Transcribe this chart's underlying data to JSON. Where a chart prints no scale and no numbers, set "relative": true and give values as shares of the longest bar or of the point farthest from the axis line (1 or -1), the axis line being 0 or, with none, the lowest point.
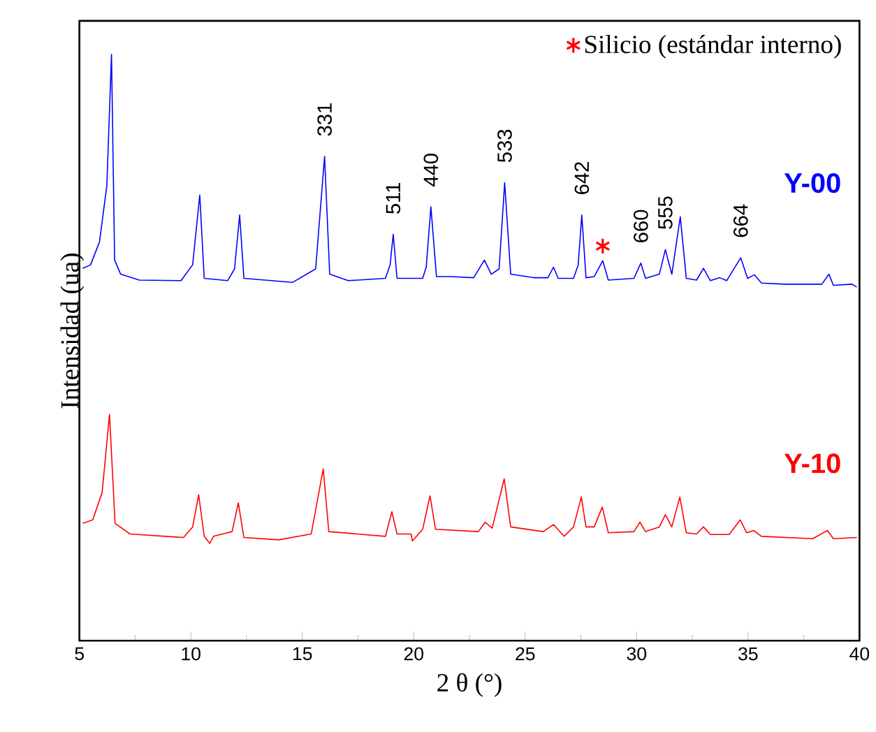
{
  "chart_data": {
    "type": "line",
    "relative": true,
    "xlabel": "2 θ (°)",
    "ylabel": "Intensidad (ua)",
    "xlim": [
      5,
      40
    ],
    "xticks": [
      5,
      10,
      15,
      20,
      25,
      30,
      35,
      40
    ],
    "legend": "top right",
    "series": [
      {
        "name": "Y-00",
        "color": "#0000ff",
        "x": [
          5.15,
          5.5,
          5.9,
          6.23,
          6.44,
          6.58,
          6.85,
          7.69,
          9.56,
          10.08,
          10.4,
          10.6,
          11.65,
          11.96,
          12.19,
          12.38,
          14.56,
          15.6,
          16.0,
          16.23,
          17.06,
          18.73,
          18.94,
          19.08,
          19.25,
          20.4,
          20.56,
          20.77,
          21.02,
          21.65,
          22.69,
          23.17,
          23.48,
          23.83,
          24.08,
          24.35,
          25.4,
          26.02,
          26.27,
          26.48,
          27.17,
          27.38,
          27.54,
          27.73,
          28.1,
          28.48,
          28.73,
          29.88,
          30.19,
          30.4,
          31.02,
          31.29,
          31.58,
          31.96,
          32.23,
          32.69,
          33.0,
          33.31,
          33.73,
          34.04,
          34.67,
          34.98,
          35.29,
          35.6,
          36.65,
          38.31,
          38.63,
          38.83,
          39.67,
          39.88
        ],
        "values": [
          0.635,
          0.641,
          0.68,
          0.776,
          1.0,
          0.649,
          0.625,
          0.615,
          0.614,
          0.641,
          0.76,
          0.618,
          0.614,
          0.634,
          0.726,
          0.618,
          0.611,
          0.634,
          0.826,
          0.625,
          0.614,
          0.618,
          0.641,
          0.693,
          0.618,
          0.618,
          0.637,
          0.74,
          0.621,
          0.621,
          0.619,
          0.649,
          0.625,
          0.634,
          0.781,
          0.625,
          0.619,
          0.619,
          0.637,
          0.618,
          0.618,
          0.641,
          0.726,
          0.619,
          0.621,
          0.648,
          0.615,
          0.618,
          0.644,
          0.618,
          0.625,
          0.667,
          0.625,
          0.723,
          0.618,
          0.615,
          0.635,
          0.614,
          0.619,
          0.614,
          0.653,
          0.618,
          0.624,
          0.61,
          0.608,
          0.608,
          0.625,
          0.606,
          0.608,
          0.603
        ]
      },
      {
        "name": "Y-10",
        "color": "#ff0000",
        "x": [
          5.15,
          5.6,
          6.02,
          6.35,
          6.6,
          7.27,
          9.67,
          10.08,
          10.35,
          10.6,
          10.85,
          11.02,
          11.85,
          12.13,
          12.38,
          13.94,
          15.4,
          15.94,
          16.19,
          18.73,
          19.02,
          19.25,
          19.88,
          19.94,
          20.4,
          20.73,
          20.98,
          22.9,
          23.2,
          23.52,
          24.06,
          24.35,
          25.81,
          26.27,
          26.75,
          27.17,
          27.52,
          27.73,
          28.1,
          28.46,
          28.73,
          29.88,
          30.15,
          30.4,
          31.02,
          31.29,
          31.58,
          31.94,
          32.23,
          32.69,
          33.0,
          33.31,
          34.15,
          34.65,
          34.94,
          35.25,
          35.6,
          37.9,
          38.56,
          38.83,
          39.88
        ],
        "values": [
          0.2,
          0.206,
          0.253,
          0.386,
          0.2,
          0.182,
          0.176,
          0.194,
          0.249,
          0.178,
          0.166,
          0.178,
          0.186,
          0.235,
          0.176,
          0.172,
          0.182,
          0.293,
          0.186,
          0.178,
          0.22,
          0.182,
          0.182,
          0.17,
          0.19,
          0.247,
          0.19,
          0.186,
          0.202,
          0.192,
          0.276,
          0.194,
          0.186,
          0.198,
          0.178,
          0.194,
          0.245,
          0.194,
          0.194,
          0.228,
          0.184,
          0.186,
          0.202,
          0.186,
          0.194,
          0.215,
          0.194,
          0.245,
          0.184,
          0.182,
          0.194,
          0.181,
          0.181,
          0.206,
          0.184,
          0.188,
          0.178,
          0.174,
          0.188,
          0.174,
          0.176
        ]
      },
      {
        "type": "scatter",
        "name": "Silicio (estándar interno)",
        "color": "#ff0000",
        "marker": "cross",
        "x": [
          28.48
        ],
        "values": [
          0.673
        ]
      }
    ],
    "annotations": [
      {
        "text": "331",
        "x": 16.0,
        "y": 0.826
      },
      {
        "text": "511",
        "x": 19.08,
        "y": 0.693
      },
      {
        "text": "440",
        "x": 20.77,
        "y": 0.74
      },
      {
        "text": "533",
        "x": 24.08,
        "y": 0.781
      },
      {
        "text": "642",
        "x": 27.54,
        "y": 0.726
      },
      {
        "text": "660",
        "x": 30.19,
        "y": 0.644
      },
      {
        "text": "555",
        "x": 31.29,
        "y": 0.667
      },
      {
        "text": "664",
        "x": 34.67,
        "y": 0.653
      }
    ]
  }
}
